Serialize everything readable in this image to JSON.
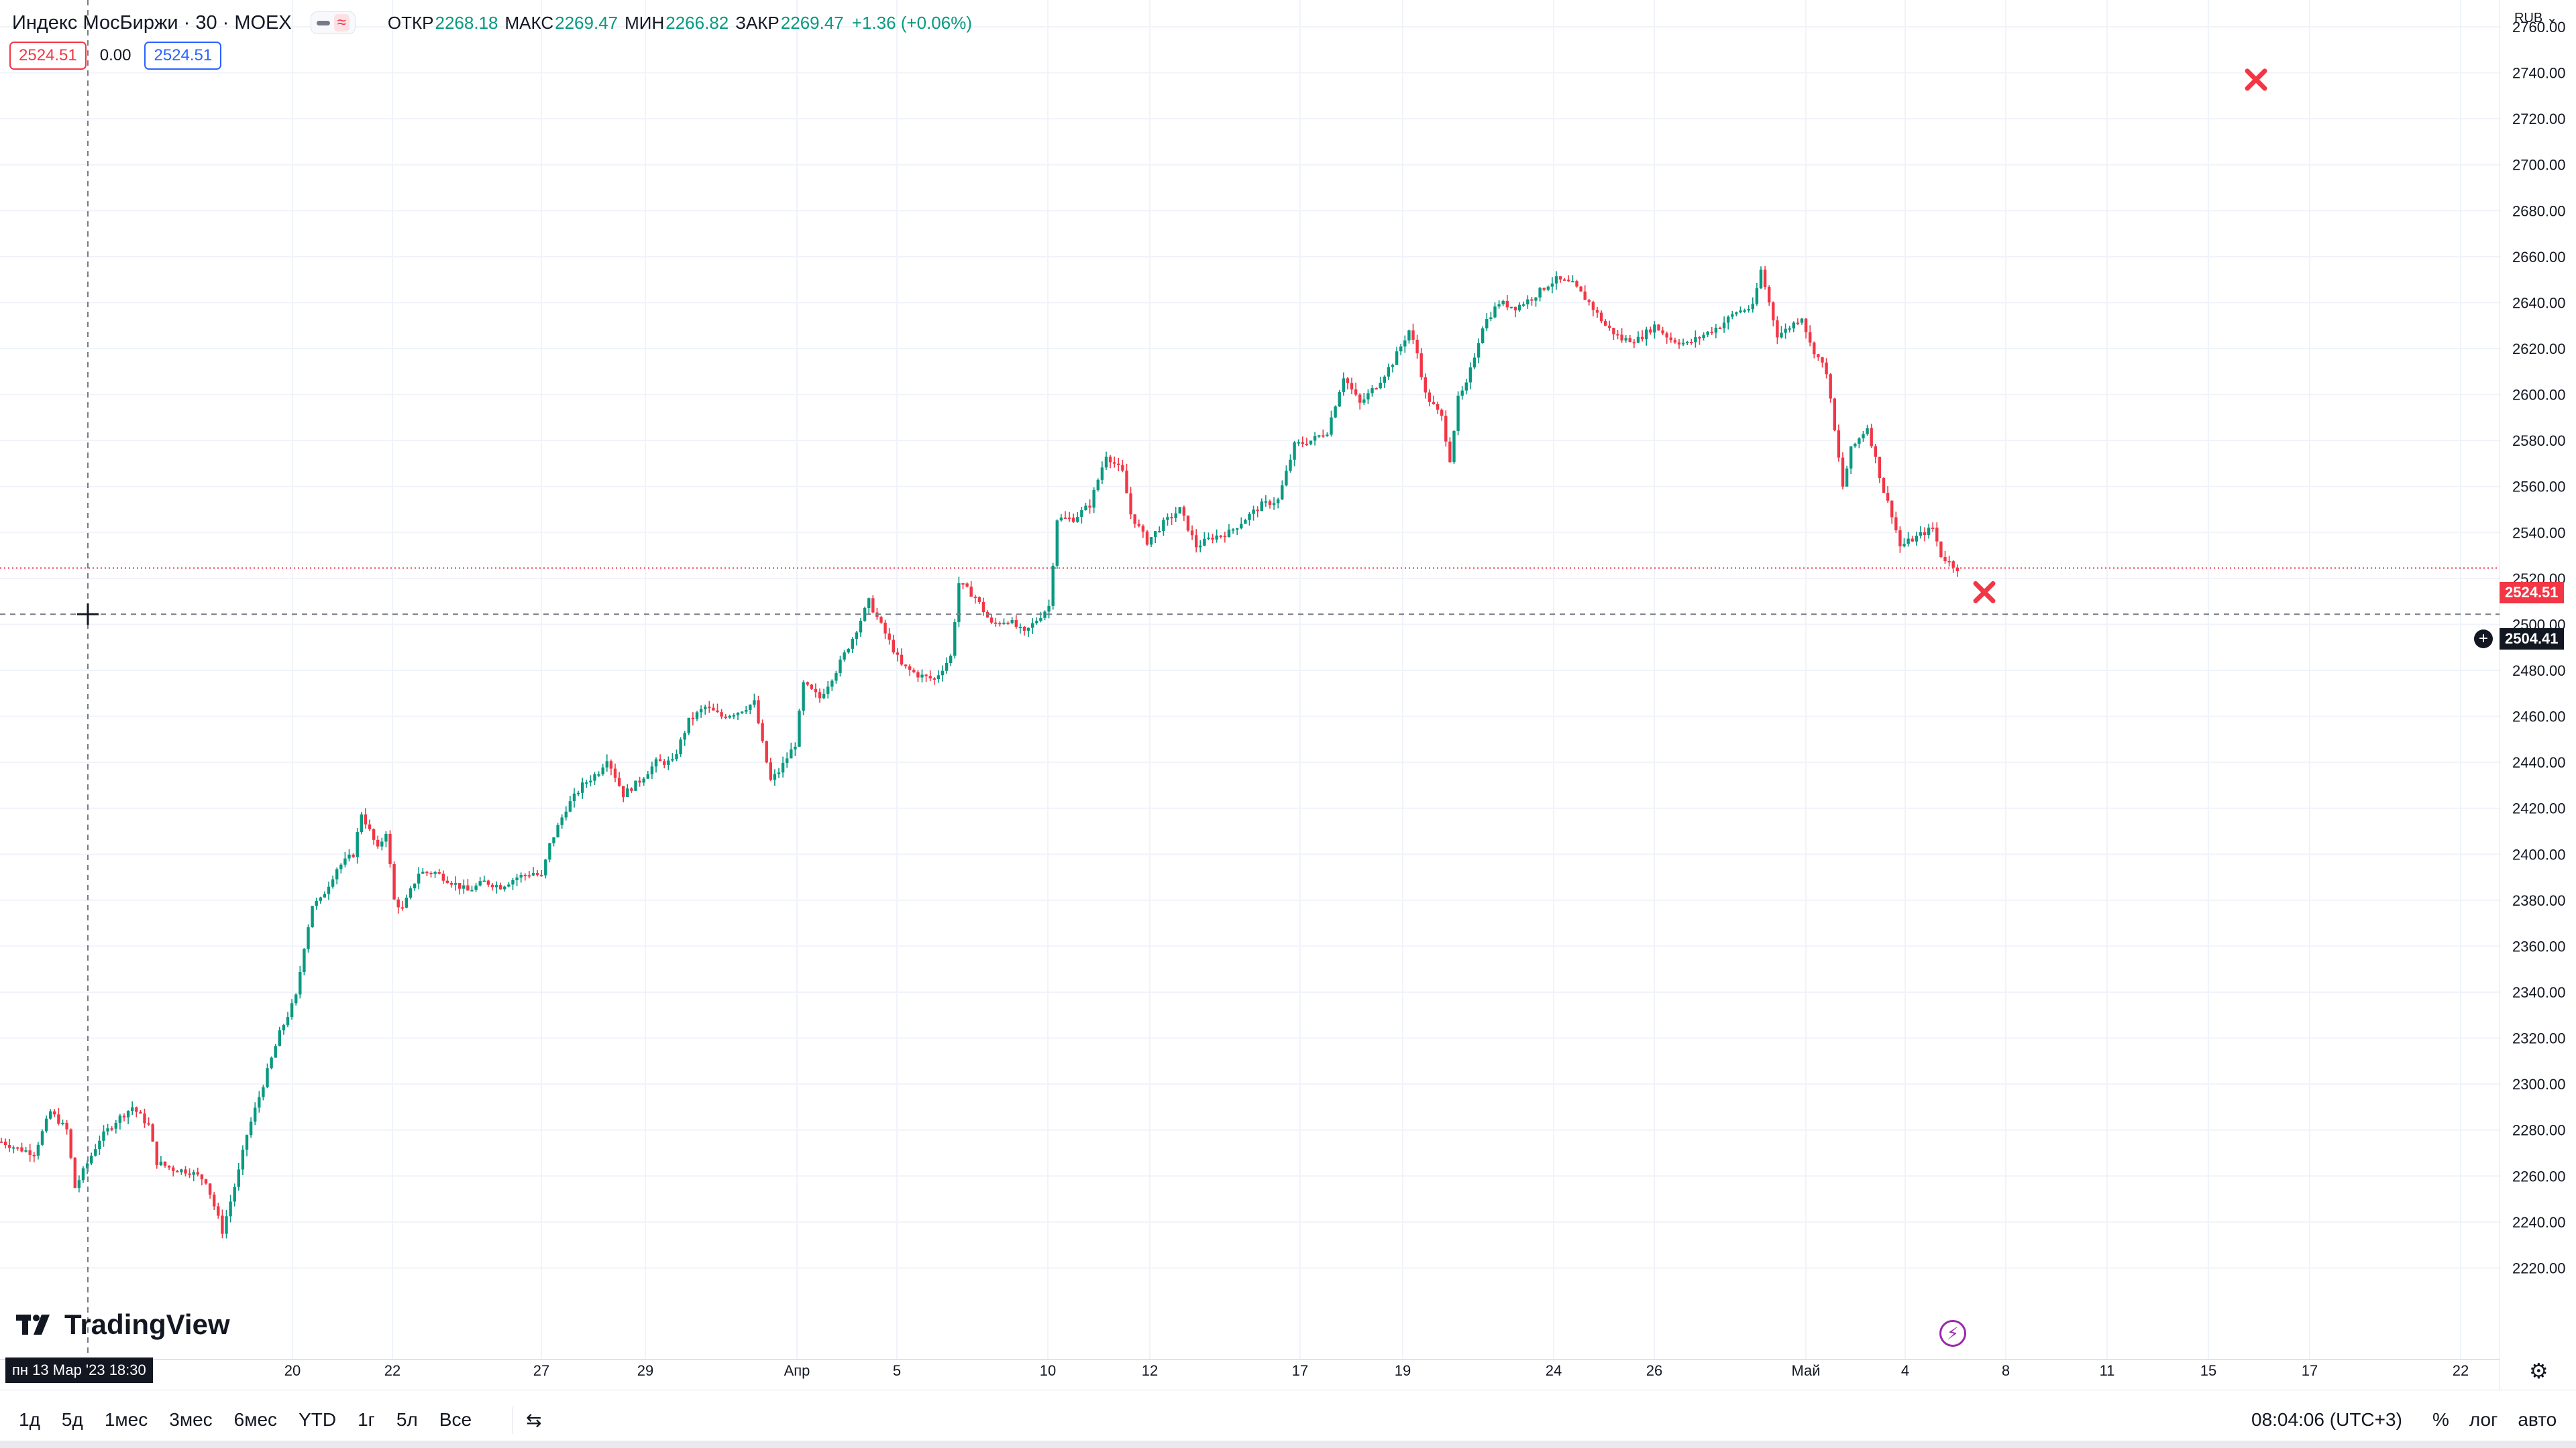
{
  "header": {
    "symbol_title": "Индекс МосБиржи · 30 · MOEX",
    "open_label": "ОТКР",
    "open_value": "2268.18",
    "high_label": "МАКС",
    "high_value": "2269.47",
    "low_label": "МИН",
    "low_value": "2266.82",
    "close_label": "ЗАКР",
    "close_value": "2269.47",
    "change": "+1.36 (+0.06%)",
    "sell_price": "2524.51",
    "spread": "0.00",
    "buy_price": "2524.51"
  },
  "currency": "RUB ⌄",
  "crosshair_date": "пн 13 Мар '23   18:30",
  "last_price_tag": "2524.51",
  "cursor_price_tag": "2504.41",
  "logo_text": "TradingView",
  "bottom": {
    "ranges": [
      "1д",
      "5д",
      "1мес",
      "3мес",
      "6мес",
      "YTD",
      "1г",
      "5л",
      "Все"
    ],
    "clock": "08:04:06 (UTC+3)",
    "opts": [
      "%",
      "лог",
      "авто"
    ]
  },
  "colors": {
    "up": "#089981",
    "down": "#f23645",
    "grid": "#f0f3fa",
    "text": "#131722"
  },
  "chart_data": {
    "type": "candlestick",
    "interval": "30",
    "y_axis": {
      "min": 2200,
      "max": 2760,
      "ticks": [
        2220,
        2240,
        2260,
        2280,
        2300,
        2320,
        2340,
        2360,
        2380,
        2400,
        2420,
        2440,
        2460,
        2480,
        2500,
        2520,
        2540,
        2560,
        2580,
        2600,
        2620,
        2640,
        2660,
        2680,
        2700,
        2720,
        2740,
        2760
      ]
    },
    "x_ticks": [
      "20",
      "22",
      "27",
      "29",
      "Апр",
      "5",
      "10",
      "12",
      "17",
      "19",
      "24",
      "26",
      "Май",
      "4",
      "8",
      "11",
      "15",
      "17",
      "22"
    ],
    "last_price": 2524.51,
    "cursor_price": 2504.41,
    "series_close_path": [
      [
        0,
        2275
      ],
      [
        4,
        2272
      ],
      [
        8,
        2270
      ],
      [
        12,
        2288
      ],
      [
        16,
        2280
      ],
      [
        18,
        2255
      ],
      [
        20,
        2262
      ],
      [
        24,
        2276
      ],
      [
        28,
        2284
      ],
      [
        32,
        2290
      ],
      [
        36,
        2282
      ],
      [
        38,
        2266
      ],
      [
        42,
        2263
      ],
      [
        46,
        2262
      ],
      [
        50,
        2258
      ],
      [
        54,
        2236
      ],
      [
        58,
        2262
      ],
      [
        60,
        2278
      ],
      [
        64,
        2300
      ],
      [
        68,
        2322
      ],
      [
        72,
        2338
      ],
      [
        74,
        2360
      ],
      [
        76,
        2378
      ],
      [
        78,
        2380
      ],
      [
        82,
        2394
      ],
      [
        86,
        2400
      ],
      [
        88,
        2418
      ],
      [
        92,
        2402
      ],
      [
        94,
        2410
      ],
      [
        96,
        2380
      ],
      [
        98,
        2376
      ],
      [
        102,
        2392
      ],
      [
        106,
        2392
      ],
      [
        110,
        2388
      ],
      [
        114,
        2384
      ],
      [
        118,
        2388
      ],
      [
        122,
        2386
      ],
      [
        126,
        2390
      ],
      [
        130,
        2392
      ],
      [
        132,
        2390
      ],
      [
        134,
        2404
      ],
      [
        138,
        2420
      ],
      [
        142,
        2430
      ],
      [
        146,
        2436
      ],
      [
        148,
        2442
      ],
      [
        150,
        2434
      ],
      [
        152,
        2426
      ],
      [
        156,
        2432
      ],
      [
        160,
        2440
      ],
      [
        164,
        2440
      ],
      [
        168,
        2458
      ],
      [
        172,
        2464
      ],
      [
        176,
        2460
      ],
      [
        180,
        2462
      ],
      [
        184,
        2466
      ],
      [
        186,
        2448
      ],
      [
        188,
        2432
      ],
      [
        190,
        2436
      ],
      [
        194,
        2448
      ],
      [
        196,
        2474
      ],
      [
        200,
        2468
      ],
      [
        204,
        2480
      ],
      [
        208,
        2494
      ],
      [
        212,
        2510
      ],
      [
        216,
        2496
      ],
      [
        220,
        2482
      ],
      [
        224,
        2478
      ],
      [
        228,
        2476
      ],
      [
        232,
        2486
      ],
      [
        234,
        2518
      ],
      [
        238,
        2512
      ],
      [
        242,
        2500
      ],
      [
        246,
        2502
      ],
      [
        250,
        2496
      ],
      [
        254,
        2504
      ],
      [
        256,
        2508
      ],
      [
        258,
        2546
      ],
      [
        262,
        2546
      ],
      [
        266,
        2552
      ],
      [
        270,
        2574
      ],
      [
        274,
        2566
      ],
      [
        276,
        2548
      ],
      [
        280,
        2536
      ],
      [
        284,
        2544
      ],
      [
        288,
        2550
      ],
      [
        292,
        2534
      ],
      [
        296,
        2538
      ],
      [
        300,
        2540
      ],
      [
        304,
        2546
      ],
      [
        308,
        2552
      ],
      [
        312,
        2554
      ],
      [
        316,
        2578
      ],
      [
        320,
        2580
      ],
      [
        324,
        2584
      ],
      [
        328,
        2608
      ],
      [
        332,
        2596
      ],
      [
        336,
        2604
      ],
      [
        340,
        2614
      ],
      [
        344,
        2628
      ],
      [
        346,
        2618
      ],
      [
        348,
        2600
      ],
      [
        352,
        2590
      ],
      [
        354,
        2572
      ],
      [
        356,
        2598
      ],
      [
        358,
        2604
      ],
      [
        362,
        2630
      ],
      [
        366,
        2640
      ],
      [
        370,
        2638
      ],
      [
        374,
        2642
      ],
      [
        378,
        2648
      ],
      [
        380,
        2650
      ],
      [
        384,
        2648
      ],
      [
        388,
        2640
      ],
      [
        392,
        2630
      ],
      [
        396,
        2624
      ],
      [
        400,
        2624
      ],
      [
        404,
        2630
      ],
      [
        408,
        2624
      ],
      [
        412,
        2622
      ],
      [
        416,
        2626
      ],
      [
        420,
        2630
      ],
      [
        424,
        2636
      ],
      [
        428,
        2638
      ],
      [
        430,
        2654
      ],
      [
        432,
        2640
      ],
      [
        434,
        2626
      ],
      [
        436,
        2628
      ],
      [
        440,
        2634
      ],
      [
        442,
        2622
      ],
      [
        446,
        2610
      ],
      [
        448,
        2584
      ],
      [
        450,
        2560
      ],
      [
        452,
        2576
      ],
      [
        456,
        2586
      ],
      [
        460,
        2558
      ],
      [
        462,
        2548
      ],
      [
        464,
        2534
      ],
      [
        468,
        2538
      ],
      [
        472,
        2542
      ],
      [
        474,
        2530
      ],
      [
        476,
        2527
      ],
      [
        478,
        2524.51
      ]
    ],
    "markers": [
      {
        "type": "cross",
        "near_x_tick": "15",
        "price": 2737
      },
      {
        "type": "cross",
        "near_x_tick": "8",
        "price": 2514
      }
    ]
  }
}
